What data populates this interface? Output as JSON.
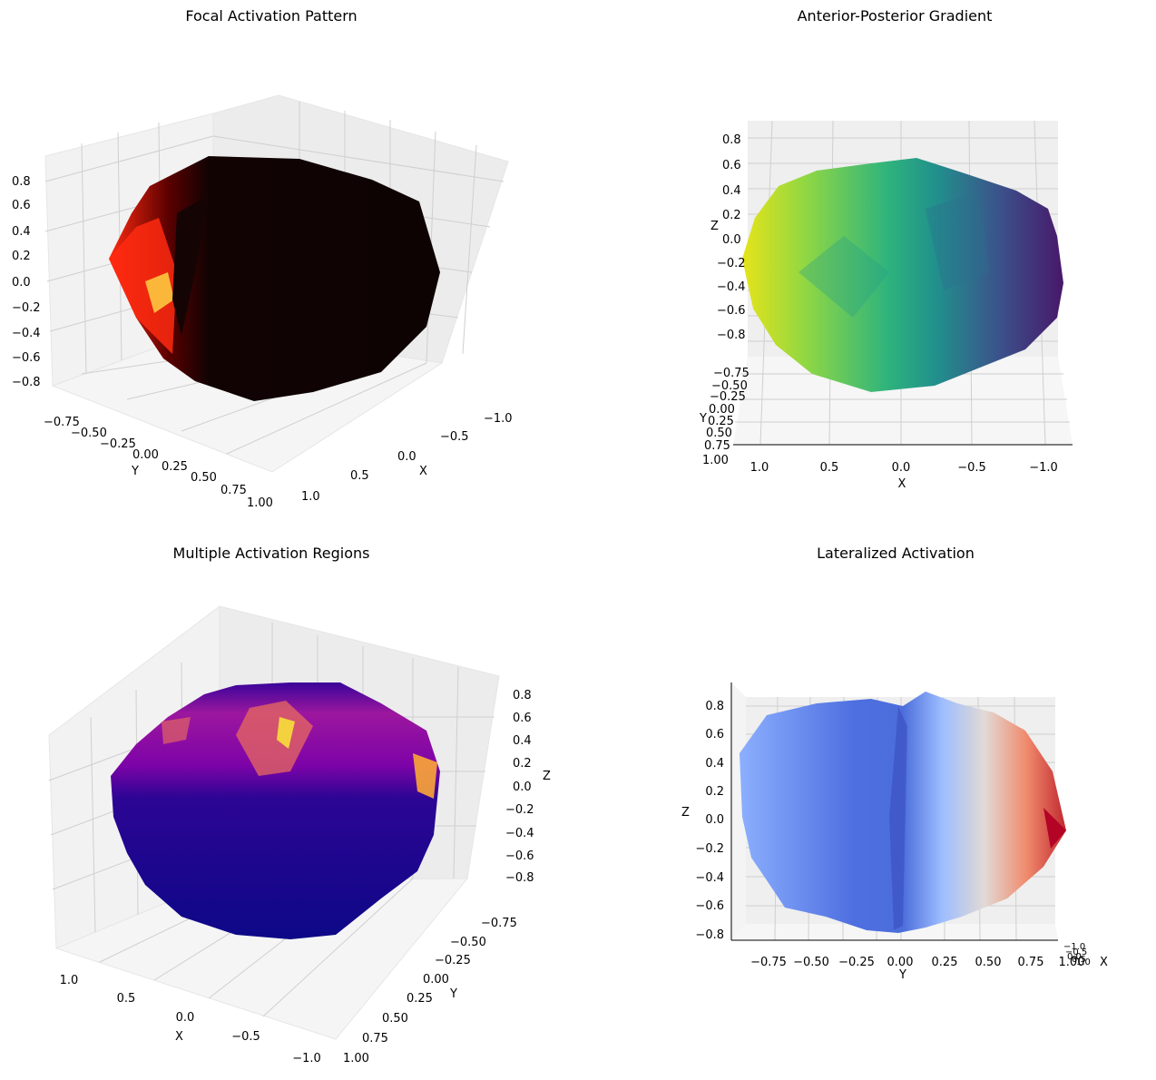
{
  "figure": {
    "background": "#ffffff",
    "pane_color": "#f2f2f2",
    "grid_color": "#c8c8c8"
  },
  "chart_data": [
    {
      "type": "surface3d",
      "title": "Focal Activation Pattern",
      "colormap": "hot",
      "colormap_stops": [
        "#000000",
        "#b40000",
        "#ff2a10",
        "#ffb000",
        "#ffff80"
      ],
      "view": "oblique",
      "xlabel": "X",
      "ylabel": "Y",
      "zlabel": "",
      "x_ticks": [
        "−1.0",
        "−0.5",
        "0.0",
        "0.5",
        "1.0"
      ],
      "y_ticks": [
        "−0.75",
        "−0.50",
        "−0.25",
        "0.00",
        "0.25",
        "0.50",
        "0.75",
        "1.00"
      ],
      "z_ticks": [
        "0.8",
        "0.6",
        "0.4",
        "0.2",
        "0.0",
        "−0.2",
        "−0.4",
        "−0.6",
        "−0.8"
      ],
      "xlim": [
        -1,
        1
      ],
      "ylim": [
        -1,
        1
      ],
      "zlim": [
        -0.9,
        0.9
      ],
      "surface": "brain-shaped ellipsoid, mostly black with a small bright red/yellow focal patch on the left side"
    },
    {
      "type": "surface3d",
      "title": "Anterior-Posterior Gradient",
      "colormap": "viridis",
      "colormap_stops": [
        "#440154",
        "#3b528b",
        "#21918c",
        "#5ec962",
        "#fde725"
      ],
      "view": "front",
      "xlabel": "X",
      "ylabel": "Y",
      "zlabel": "Z",
      "x_ticks": [
        "1.0",
        "0.5",
        "0.0",
        "−0.5",
        "−1.0"
      ],
      "y_ticks": [
        "−0.75",
        "−0.50",
        "−0.25",
        "0.00",
        "0.25",
        "0.50",
        "0.75",
        "1.00"
      ],
      "z_ticks": [
        "0.8",
        "0.6",
        "0.4",
        "0.2",
        "0.0",
        "−0.2",
        "−0.4",
        "−0.6",
        "−0.8"
      ],
      "xlim": [
        -1,
        1
      ],
      "ylim": [
        -1,
        1
      ],
      "zlim": [
        -0.9,
        0.9
      ],
      "surface": "ellipsoid colored by a left-to-right gradient from yellow through green and teal to purple"
    },
    {
      "type": "surface3d",
      "title": "Multiple Activation Regions",
      "colormap": "plasma",
      "colormap_stops": [
        "#0d0887",
        "#6a00a8",
        "#b12a90",
        "#e16462",
        "#fca636",
        "#f0f921"
      ],
      "view": "oblique-high",
      "xlabel": "X",
      "ylabel": "Y",
      "zlabel": "Z",
      "x_ticks": [
        "1.0",
        "0.5",
        "0.0",
        "−0.5",
        "−1.0"
      ],
      "y_ticks": [
        "−0.75",
        "−0.50",
        "−0.25",
        "0.00",
        "0.25",
        "0.50",
        "0.75",
        "1.00"
      ],
      "z_ticks": [
        "0.8",
        "0.6",
        "0.4",
        "0.2",
        "0.0",
        "−0.2",
        "−0.4",
        "−0.6",
        "−0.8"
      ],
      "xlim": [
        -1,
        1
      ],
      "ylim": [
        -1,
        1
      ],
      "zlim": [
        -0.9,
        0.9
      ],
      "surface": "ellipsoid mostly dark blue with purple/magenta upper half and yellow-orange hotspots on top"
    },
    {
      "type": "surface3d",
      "title": "Lateralized Activation",
      "colormap": "coolwarm",
      "colormap_stops": [
        "#3b4cc0",
        "#6f92f3",
        "#aac7fd",
        "#dddddd",
        "#f7b89c",
        "#e7745b",
        "#b40426"
      ],
      "view": "side",
      "xlabel": "X",
      "ylabel": "Y",
      "zlabel": "Z",
      "x_ticks": [
        "−1.0",
        "−0.5",
        "0.0",
        "0.5",
        "1.0"
      ],
      "y_ticks": [
        "−0.75",
        "−0.50",
        "−0.25",
        "0.00",
        "0.25",
        "0.50",
        "0.75",
        "1.00"
      ],
      "z_ticks": [
        "0.8",
        "0.6",
        "0.4",
        "0.2",
        "0.0",
        "−0.2",
        "−0.4",
        "−0.6",
        "−0.8"
      ],
      "xlim": [
        -1,
        1
      ],
      "ylim": [
        -1,
        1
      ],
      "zlim": [
        -0.9,
        0.9
      ],
      "surface": "ellipsoid blue on the left half, fading to white and red on the right half"
    }
  ]
}
